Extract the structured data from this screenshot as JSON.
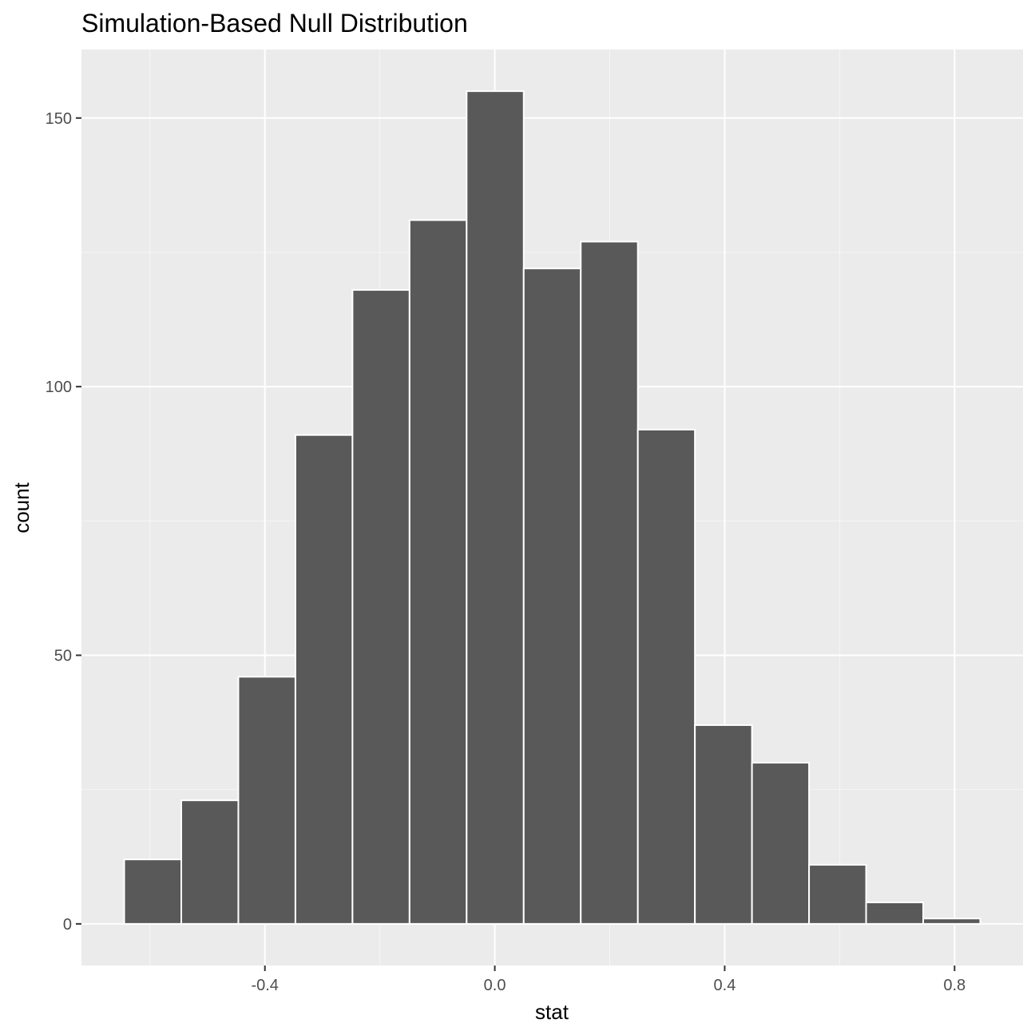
{
  "chart_data": {
    "type": "bar",
    "title": "Simulation-Based Null Distribution",
    "xlabel": "stat",
    "ylabel": "count",
    "bin_width": 0.0993,
    "bins": [
      {
        "start": -0.6448,
        "end": -0.5455,
        "count": 12
      },
      {
        "start": -0.5455,
        "end": -0.4462,
        "count": 23
      },
      {
        "start": -0.4462,
        "end": -0.3469,
        "count": 46
      },
      {
        "start": -0.3469,
        "end": -0.2476,
        "count": 91
      },
      {
        "start": -0.2476,
        "end": -0.1483,
        "count": 118
      },
      {
        "start": -0.1483,
        "end": -0.049,
        "count": 131
      },
      {
        "start": -0.049,
        "end": 0.0503,
        "count": 155
      },
      {
        "start": 0.0503,
        "end": 0.1496,
        "count": 122
      },
      {
        "start": 0.1496,
        "end": 0.2489,
        "count": 127
      },
      {
        "start": 0.2489,
        "end": 0.3482,
        "count": 92
      },
      {
        "start": 0.3482,
        "end": 0.4475,
        "count": 37
      },
      {
        "start": 0.4475,
        "end": 0.5468,
        "count": 30
      },
      {
        "start": 0.5468,
        "end": 0.6461,
        "count": 11
      },
      {
        "start": 0.6461,
        "end": 0.7454,
        "count": 4
      },
      {
        "start": 0.7454,
        "end": 0.8447,
        "count": 1
      }
    ],
    "xlim": [
      -0.7192,
      0.9191
    ],
    "ylim": [
      -7.75,
      162.75
    ],
    "x_ticks": [
      -0.4,
      0.0,
      0.4,
      0.8
    ],
    "x_tick_labels": [
      "-0.4",
      "0.0",
      "0.4",
      "0.8"
    ],
    "y_ticks": [
      0,
      50,
      100,
      150
    ],
    "y_tick_labels": [
      "0",
      "50",
      "100",
      "150"
    ],
    "grid": true,
    "colors": {
      "panel_background": "#ebebeb",
      "grid_major": "#ffffff",
      "grid_minor": "#f5f5f5",
      "bar_fill": "#595959",
      "bar_outline": "#ffffff",
      "tick_text": "#4d4d4d",
      "tick_mark": "#333333"
    }
  }
}
